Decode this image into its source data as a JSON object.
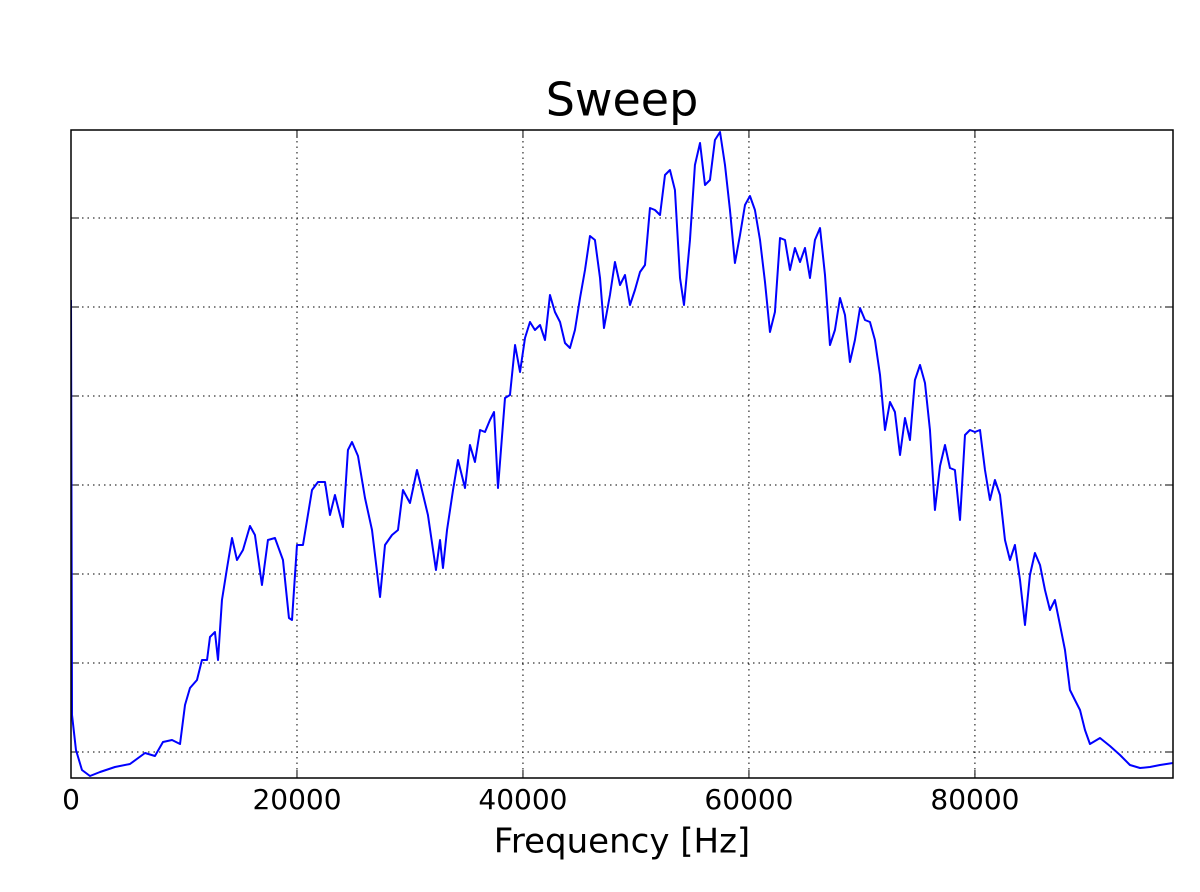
{
  "chart_data": {
    "type": "line",
    "title": "Sweep",
    "x_label": "Frequency [Hz]",
    "xlim": [
      0,
      97530
    ],
    "xticks": [
      0,
      20000,
      40000,
      60000,
      80000
    ],
    "ylim": [
      0,
      648
    ],
    "yticks": [
      26,
      115,
      204,
      293,
      382,
      471,
      560
    ],
    "grid": true,
    "series": [
      {
        "color": "#0000ff",
        "x": [
          0,
          90,
          440,
          970,
          1680,
          2570,
          3890,
          5220,
          6550,
          7430,
          8140,
          8940,
          9650,
          10090,
          10530,
          11150,
          11590,
          12040,
          12300,
          12740,
          13010,
          13360,
          13810,
          14250,
          14690,
          15220,
          15840,
          16280,
          16900,
          17430,
          18050,
          18760,
          19290,
          19560,
          20000,
          20530,
          21330,
          21860,
          22480,
          22920,
          23360,
          24070,
          24510,
          24870,
          25400,
          26020,
          26640,
          27350,
          27790,
          28410,
          28940,
          29380,
          30000,
          30620,
          30890,
          31590,
          32300,
          32660,
          32920,
          33280,
          33810,
          34250,
          34870,
          35310,
          35750,
          36200,
          36640,
          37080,
          37440,
          37790,
          38410,
          38850,
          39300,
          39740,
          40180,
          40620,
          41060,
          41510,
          41950,
          42390,
          42830,
          43280,
          43720,
          44160,
          44600,
          45050,
          45490,
          45930,
          46370,
          46820,
          47170,
          47700,
          48140,
          48590,
          49030,
          49470,
          49910,
          50360,
          50800,
          51240,
          51680,
          52130,
          52570,
          53010,
          53450,
          53900,
          54250,
          54780,
          55220,
          55670,
          56110,
          56550,
          56990,
          57440,
          57880,
          58320,
          58760,
          59210,
          59650,
          60090,
          60530,
          60980,
          61420,
          61860,
          62300,
          62750,
          63190,
          63630,
          64070,
          64520,
          64960,
          65400,
          65840,
          66290,
          66730,
          67170,
          67610,
          68060,
          68500,
          68940,
          69380,
          69830,
          70270,
          70710,
          71150,
          71600,
          72040,
          72480,
          72920,
          73370,
          73810,
          74250,
          74690,
          75140,
          75580,
          76020,
          76460,
          76910,
          77350,
          77790,
          78230,
          78680,
          79120,
          79560,
          80000,
          80450,
          80890,
          81330,
          81770,
          82220,
          82660,
          83100,
          83540,
          83990,
          84430,
          84870,
          85310,
          85760,
          86200,
          86640,
          87080,
          87530,
          87970,
          88410,
          88850,
          89300,
          89740,
          90180,
          91070,
          91950,
          92840,
          93720,
          94610,
          95490,
          96380,
          97530
        ],
        "values": [
          478,
          63,
          28,
          8,
          2,
          6,
          11,
          14,
          25,
          22,
          36,
          38,
          34,
          73,
          90,
          98,
          118,
          118,
          141,
          146,
          118,
          178,
          210,
          240,
          218,
          228,
          252,
          243,
          193,
          238,
          240,
          218,
          160,
          158,
          233,
          233,
          288,
          296,
          296,
          263,
          283,
          251,
          328,
          336,
          322,
          280,
          248,
          181,
          233,
          243,
          248,
          288,
          275,
          308,
          296,
          263,
          208,
          238,
          210,
          248,
          288,
          318,
          290,
          333,
          316,
          348,
          346,
          358,
          366,
          290,
          380,
          383,
          433,
          406,
          440,
          456,
          448,
          453,
          438,
          483,
          466,
          456,
          435,
          430,
          448,
          480,
          508,
          542,
          538,
          500,
          450,
          483,
          516,
          493,
          503,
          473,
          488,
          506,
          513,
          570,
          568,
          563,
          603,
          608,
          588,
          500,
          473,
          538,
          613,
          635,
          593,
          598,
          638,
          646,
          613,
          568,
          515,
          543,
          573,
          582,
          568,
          538,
          496,
          446,
          466,
          540,
          538,
          508,
          530,
          516,
          530,
          500,
          538,
          550,
          503,
          433,
          448,
          480,
          463,
          416,
          438,
          470,
          458,
          456,
          438,
          403,
          348,
          376,
          366,
          323,
          360,
          338,
          398,
          413,
          395,
          348,
          268,
          312,
          333,
          310,
          308,
          258,
          343,
          348,
          346,
          348,
          308,
          278,
          298,
          283,
          238,
          218,
          233,
          198,
          153,
          203,
          225,
          213,
          188,
          168,
          178,
          153,
          128,
          88,
          78,
          68,
          48,
          34,
          40,
          32,
          23,
          13,
          10,
          11,
          13,
          15
        ]
      }
    ]
  }
}
